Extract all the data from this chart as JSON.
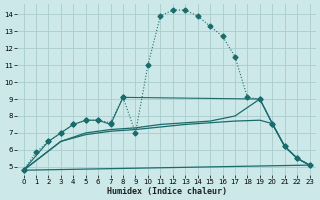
{
  "xlabel": "Humidex (Indice chaleur)",
  "bg_color": "#cce8e8",
  "grid_color": "#aacccc",
  "line_color": "#1a6b6b",
  "xlim": [
    -0.5,
    23.5
  ],
  "ylim": [
    4.5,
    14.6
  ],
  "xticks": [
    0,
    1,
    2,
    3,
    4,
    5,
    6,
    7,
    8,
    9,
    10,
    11,
    12,
    13,
    14,
    15,
    16,
    17,
    18,
    19,
    20,
    21,
    22,
    23
  ],
  "yticks": [
    5,
    6,
    7,
    8,
    9,
    10,
    11,
    12,
    13,
    14
  ],
  "series": [
    {
      "x": [
        0,
        1,
        2,
        3,
        4,
        5,
        6,
        7,
        8,
        9,
        10,
        11,
        12,
        13,
        14,
        15,
        16,
        17,
        18,
        19,
        20,
        21,
        22,
        23
      ],
      "y": [
        4.8,
        5.85,
        6.5,
        7.0,
        7.5,
        7.75,
        7.75,
        7.6,
        9.1,
        7.0,
        11.0,
        13.9,
        14.25,
        14.25,
        13.9,
        13.3,
        12.7,
        11.5,
        9.1,
        9.0,
        7.55,
        6.2,
        5.5,
        5.1
      ],
      "marker": "D",
      "markersize": 2.5,
      "linewidth": 0.8,
      "linestyle": ":"
    },
    {
      "x": [
        0,
        3,
        5,
        7,
        9,
        11,
        13,
        15,
        17,
        19,
        20,
        21,
        22,
        23
      ],
      "y": [
        4.8,
        6.5,
        7.0,
        7.2,
        7.3,
        7.5,
        7.6,
        7.7,
        8.0,
        9.0,
        7.55,
        6.2,
        5.5,
        5.1
      ],
      "marker": null,
      "markersize": 0,
      "linewidth": 0.9,
      "linestyle": "-"
    },
    {
      "x": [
        0,
        3,
        5,
        7,
        9,
        11,
        13,
        15,
        17,
        19,
        20,
        21,
        22,
        23
      ],
      "y": [
        4.8,
        6.5,
        6.9,
        7.1,
        7.2,
        7.35,
        7.5,
        7.6,
        7.7,
        7.75,
        7.55,
        6.2,
        5.5,
        5.1
      ],
      "marker": null,
      "markersize": 0,
      "linewidth": 0.9,
      "linestyle": "-"
    },
    {
      "x": [
        0,
        23
      ],
      "y": [
        4.8,
        5.1
      ],
      "marker": null,
      "markersize": 0,
      "linewidth": 0.9,
      "linestyle": "-"
    },
    {
      "x": [
        0,
        2,
        3,
        4,
        5,
        6,
        7,
        8,
        19,
        20,
        21,
        22,
        23
      ],
      "y": [
        4.8,
        6.5,
        7.0,
        7.5,
        7.75,
        7.75,
        7.5,
        9.1,
        9.0,
        7.55,
        6.2,
        5.5,
        5.1
      ],
      "marker": "D",
      "markersize": 2.5,
      "linewidth": 0.8,
      "linestyle": "-"
    }
  ]
}
